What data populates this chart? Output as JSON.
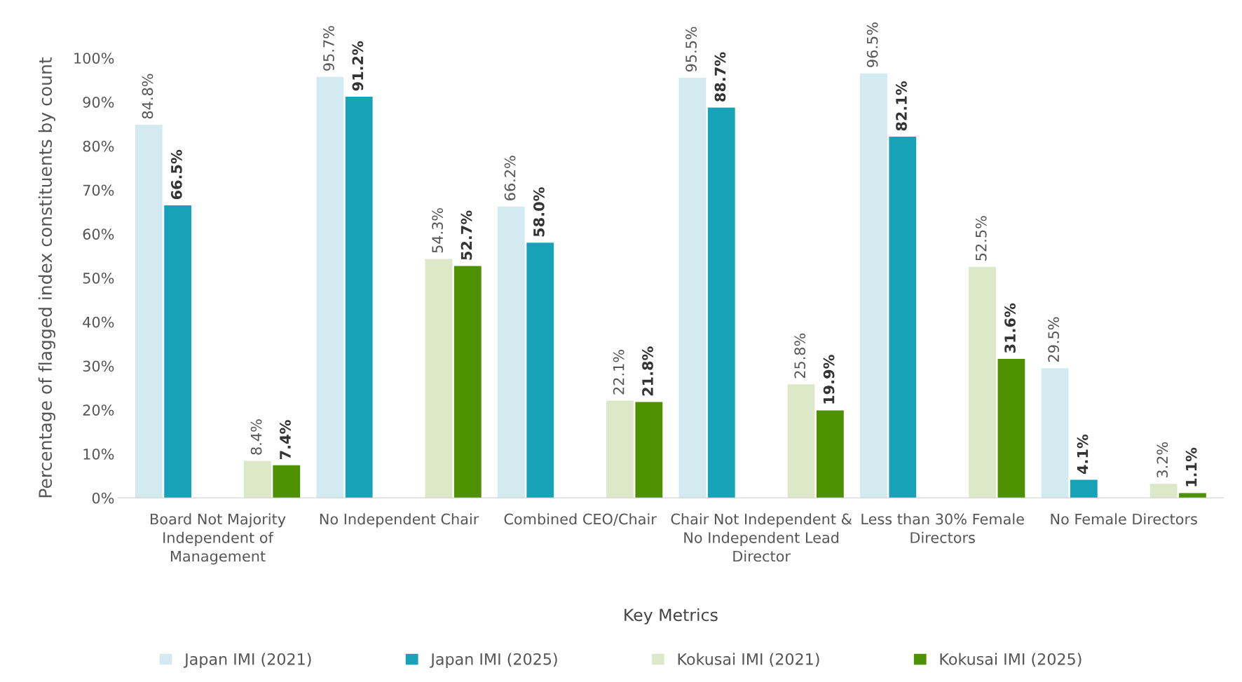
{
  "chart_data": {
    "type": "bar",
    "xlabel": "Key Metrics",
    "ylabel": "Percentage of flagged index constituents by count",
    "categories": [
      "Board Not Majority Independent of Management",
      "No Independent Chair",
      "Combined CEO/Chair",
      "Chair Not Independent & No Independent Lead Director",
      "Less than 30% Female Directors",
      "No Female Directors"
    ],
    "series": [
      {
        "name": "Japan IMI (2021)",
        "color": "#d2eaf0",
        "values": [
          84.8,
          95.7,
          66.2,
          95.5,
          96.5,
          29.5
        ],
        "value_labels": [
          "84.8%",
          "95.7%",
          "66.2%",
          "95.5%",
          "96.5%",
          "29.5%"
        ]
      },
      {
        "name": "Japan IMI (2025)",
        "color": "#17a2b8",
        "values": [
          66.5,
          91.2,
          58.0,
          88.7,
          82.1,
          4.1
        ],
        "value_labels": [
          "66.5%",
          "91.2%",
          "58.0%",
          "88.7%",
          "82.1%",
          "4.1%"
        ]
      },
      {
        "name": "Kokusai IMI (2021)",
        "color": "#dde8c8",
        "values": [
          8.4,
          54.3,
          22.1,
          25.8,
          52.5,
          3.2
        ],
        "value_labels": [
          "8.4%",
          "54.3%",
          "22.1%",
          "25.8%",
          "52.5%",
          "3.2%"
        ]
      },
      {
        "name": "Kokusai IMI (2025)",
        "color": "#4e9100",
        "values": [
          7.4,
          52.7,
          21.8,
          19.9,
          31.6,
          1.1
        ],
        "value_labels": [
          "7.4%",
          "52.7%",
          "21.8%",
          "19.9%",
          "31.6%",
          "1.1%"
        ]
      }
    ],
    "ylim": [
      0,
      100
    ],
    "yticks": [
      {
        "value": 0,
        "label": "0%"
      },
      {
        "value": 10,
        "label": "10%"
      },
      {
        "value": 20,
        "label": "20%"
      },
      {
        "value": 30,
        "label": "30%"
      },
      {
        "value": 40,
        "label": "40%"
      },
      {
        "value": 50,
        "label": "50%"
      },
      {
        "value": 60,
        "label": "60%"
      },
      {
        "value": 70,
        "label": "70%"
      },
      {
        "value": 80,
        "label": "80%"
      },
      {
        "value": 90,
        "label": "90%"
      },
      {
        "value": 100,
        "label": "100%"
      }
    ],
    "grid": false,
    "legend": "bottom"
  }
}
